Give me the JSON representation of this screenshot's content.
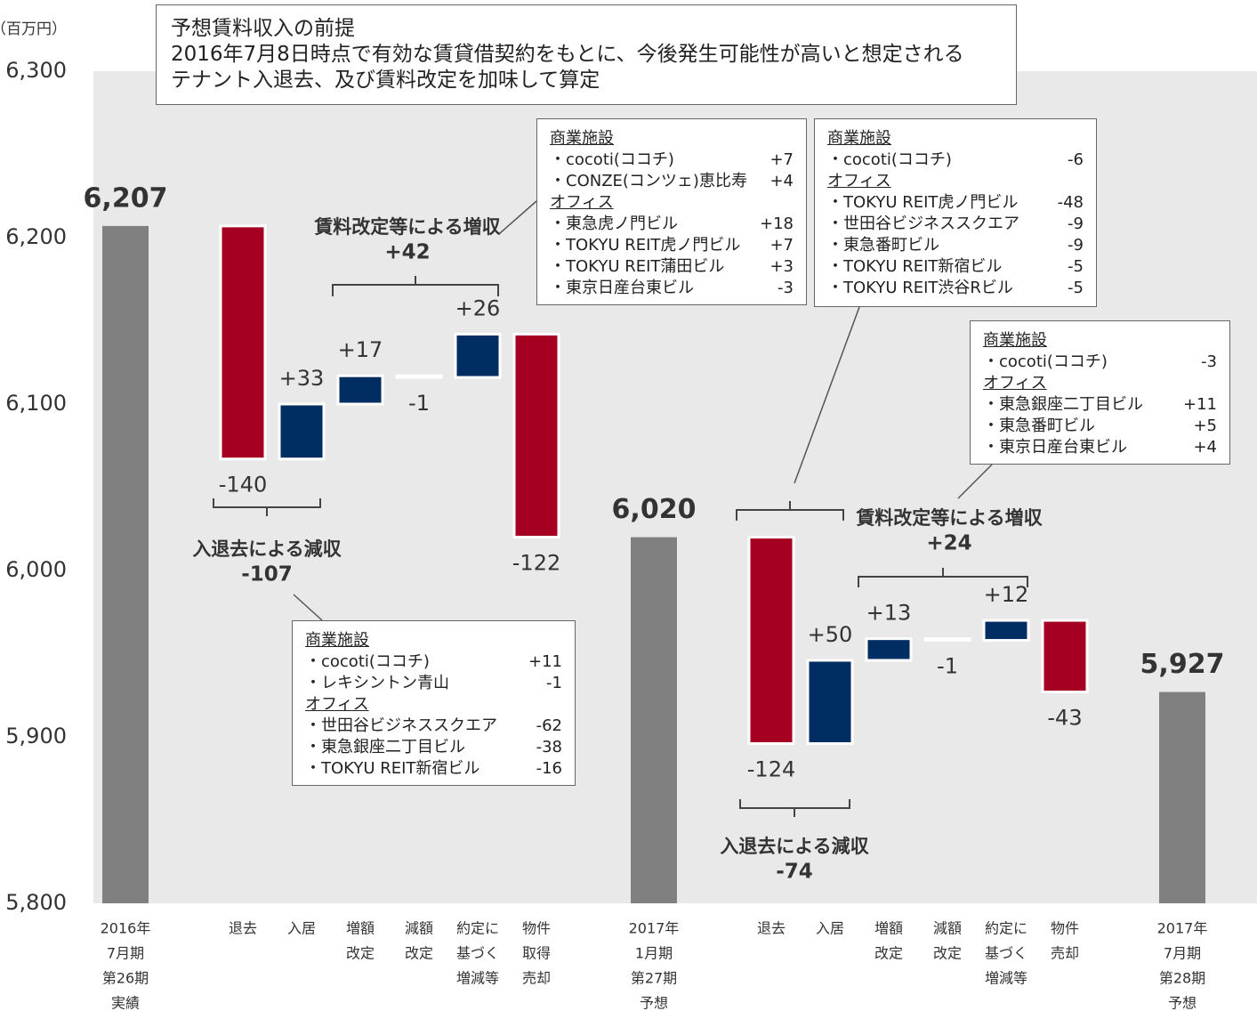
{
  "chart_data": {
    "type": "waterfall",
    "unit_label": "（百万円）",
    "categories": [
      [
        "2016年",
        "7月期",
        "第26期",
        "実績"
      ],
      [
        "退去"
      ],
      [
        "入居"
      ],
      [
        "増額",
        "改定"
      ],
      [
        "減額",
        "改定"
      ],
      [
        "約定に",
        "基づく",
        "増減等"
      ],
      [
        "物件",
        "取得",
        "売却"
      ],
      [
        "2017年",
        "1月期",
        "第27期",
        "予想"
      ],
      [
        "退去"
      ],
      [
        "入居"
      ],
      [
        "増額",
        "改定"
      ],
      [
        "減額",
        "改定"
      ],
      [
        "約定に",
        "基づく",
        "増減等"
      ],
      [
        "物件",
        "売却"
      ],
      [
        "2017年",
        "7月期",
        "第28期",
        "予想"
      ]
    ],
    "measures": [
      "total",
      "relative",
      "relative",
      "relative",
      "relative",
      "relative",
      "relative",
      "total",
      "relative",
      "relative",
      "relative",
      "relative",
      "relative",
      "relative",
      "total"
    ],
    "values": [
      6207,
      -140,
      33,
      17,
      -1,
      26,
      -122,
      6020,
      -124,
      50,
      13,
      -1,
      12,
      -43,
      5927
    ],
    "value_labels": [
      "6,207",
      "-140",
      "+33",
      "+17",
      "-1",
      "+26",
      "-122",
      "6,020",
      "-124",
      "+50",
      "+13",
      "-1",
      "+12",
      "-43",
      "5,927"
    ],
    "colors": {
      "total": "#808080",
      "increase": "#002d62",
      "decrease": "#a50021"
    },
    "ylim": [
      5800,
      6300
    ],
    "yticks": [
      {
        "value": 5800,
        "label": "5,800"
      },
      {
        "value": 5900,
        "label": "5,900"
      },
      {
        "value": 6000,
        "label": "6,000"
      },
      {
        "value": 6100,
        "label": "6,100"
      },
      {
        "value": 6200,
        "label": "6,200"
      },
      {
        "value": 6300,
        "label": "6,300"
      }
    ],
    "premise": [
      "予想賃料収入の前提",
      "2016年7月8日時点で有効な賃貸借契約をもとに、今後発生可能性が高いと想定される",
      "テナント入退去、及び賃料改定を加味して算定"
    ],
    "groups": [
      {
        "label": "入退去による減収",
        "value": "-107"
      },
      {
        "label": "賃料改定等による増収",
        "value": "+42"
      },
      {
        "label": "入退去による減収",
        "value": "-74"
      },
      {
        "label": "賃料改定等による増収",
        "value": "+24"
      }
    ],
    "callouts": [
      {
        "sections": [
          {
            "heading": "商業施設",
            "items": [
              [
                "・cocoti(ココチ)",
                "+7"
              ],
              [
                "・CONZE(コンツェ)恵比寿",
                "+4"
              ]
            ]
          },
          {
            "heading": "オフィス",
            "items": [
              [
                "・東急虎ノ門ビル",
                "+18"
              ],
              [
                "・TOKYU REIT虎ノ門ビル",
                "+7"
              ],
              [
                "・TOKYU REIT蒲田ビル",
                "+3"
              ],
              [
                "・東京日産台東ビル",
                "-3"
              ]
            ]
          }
        ]
      },
      {
        "sections": [
          {
            "heading": "商業施設",
            "items": [
              [
                "・cocoti(ココチ)",
                "-6"
              ]
            ]
          },
          {
            "heading": "オフィス",
            "items": [
              [
                "・TOKYU REIT虎ノ門ビル",
                "-48"
              ],
              [
                "・世田谷ビジネススクエア",
                "-9"
              ],
              [
                "・東急番町ビル",
                "-9"
              ],
              [
                "・TOKYU REIT新宿ビル",
                "-5"
              ],
              [
                "・TOKYU REIT渋谷Rビル",
                "-5"
              ]
            ]
          }
        ]
      },
      {
        "sections": [
          {
            "heading": "商業施設",
            "items": [
              [
                "・cocoti(ココチ)",
                "-3"
              ]
            ]
          },
          {
            "heading": "オフィス",
            "items": [
              [
                "・東急銀座二丁目ビル",
                "+11"
              ],
              [
                "・東急番町ビル",
                "+5"
              ],
              [
                "・東京日産台東ビル",
                "+4"
              ]
            ]
          }
        ]
      },
      {
        "sections": [
          {
            "heading": "商業施設",
            "items": [
              [
                "・cocoti(ココチ)",
                "+11"
              ],
              [
                "・レキシントン青山",
                "-1"
              ]
            ]
          },
          {
            "heading": "オフィス",
            "items": [
              [
                "・世田谷ビジネススクエア",
                "-62"
              ],
              [
                "・東急銀座二丁目ビル",
                "-38"
              ],
              [
                "・TOKYU REIT新宿ビル",
                "-16"
              ]
            ]
          }
        ]
      }
    ]
  }
}
